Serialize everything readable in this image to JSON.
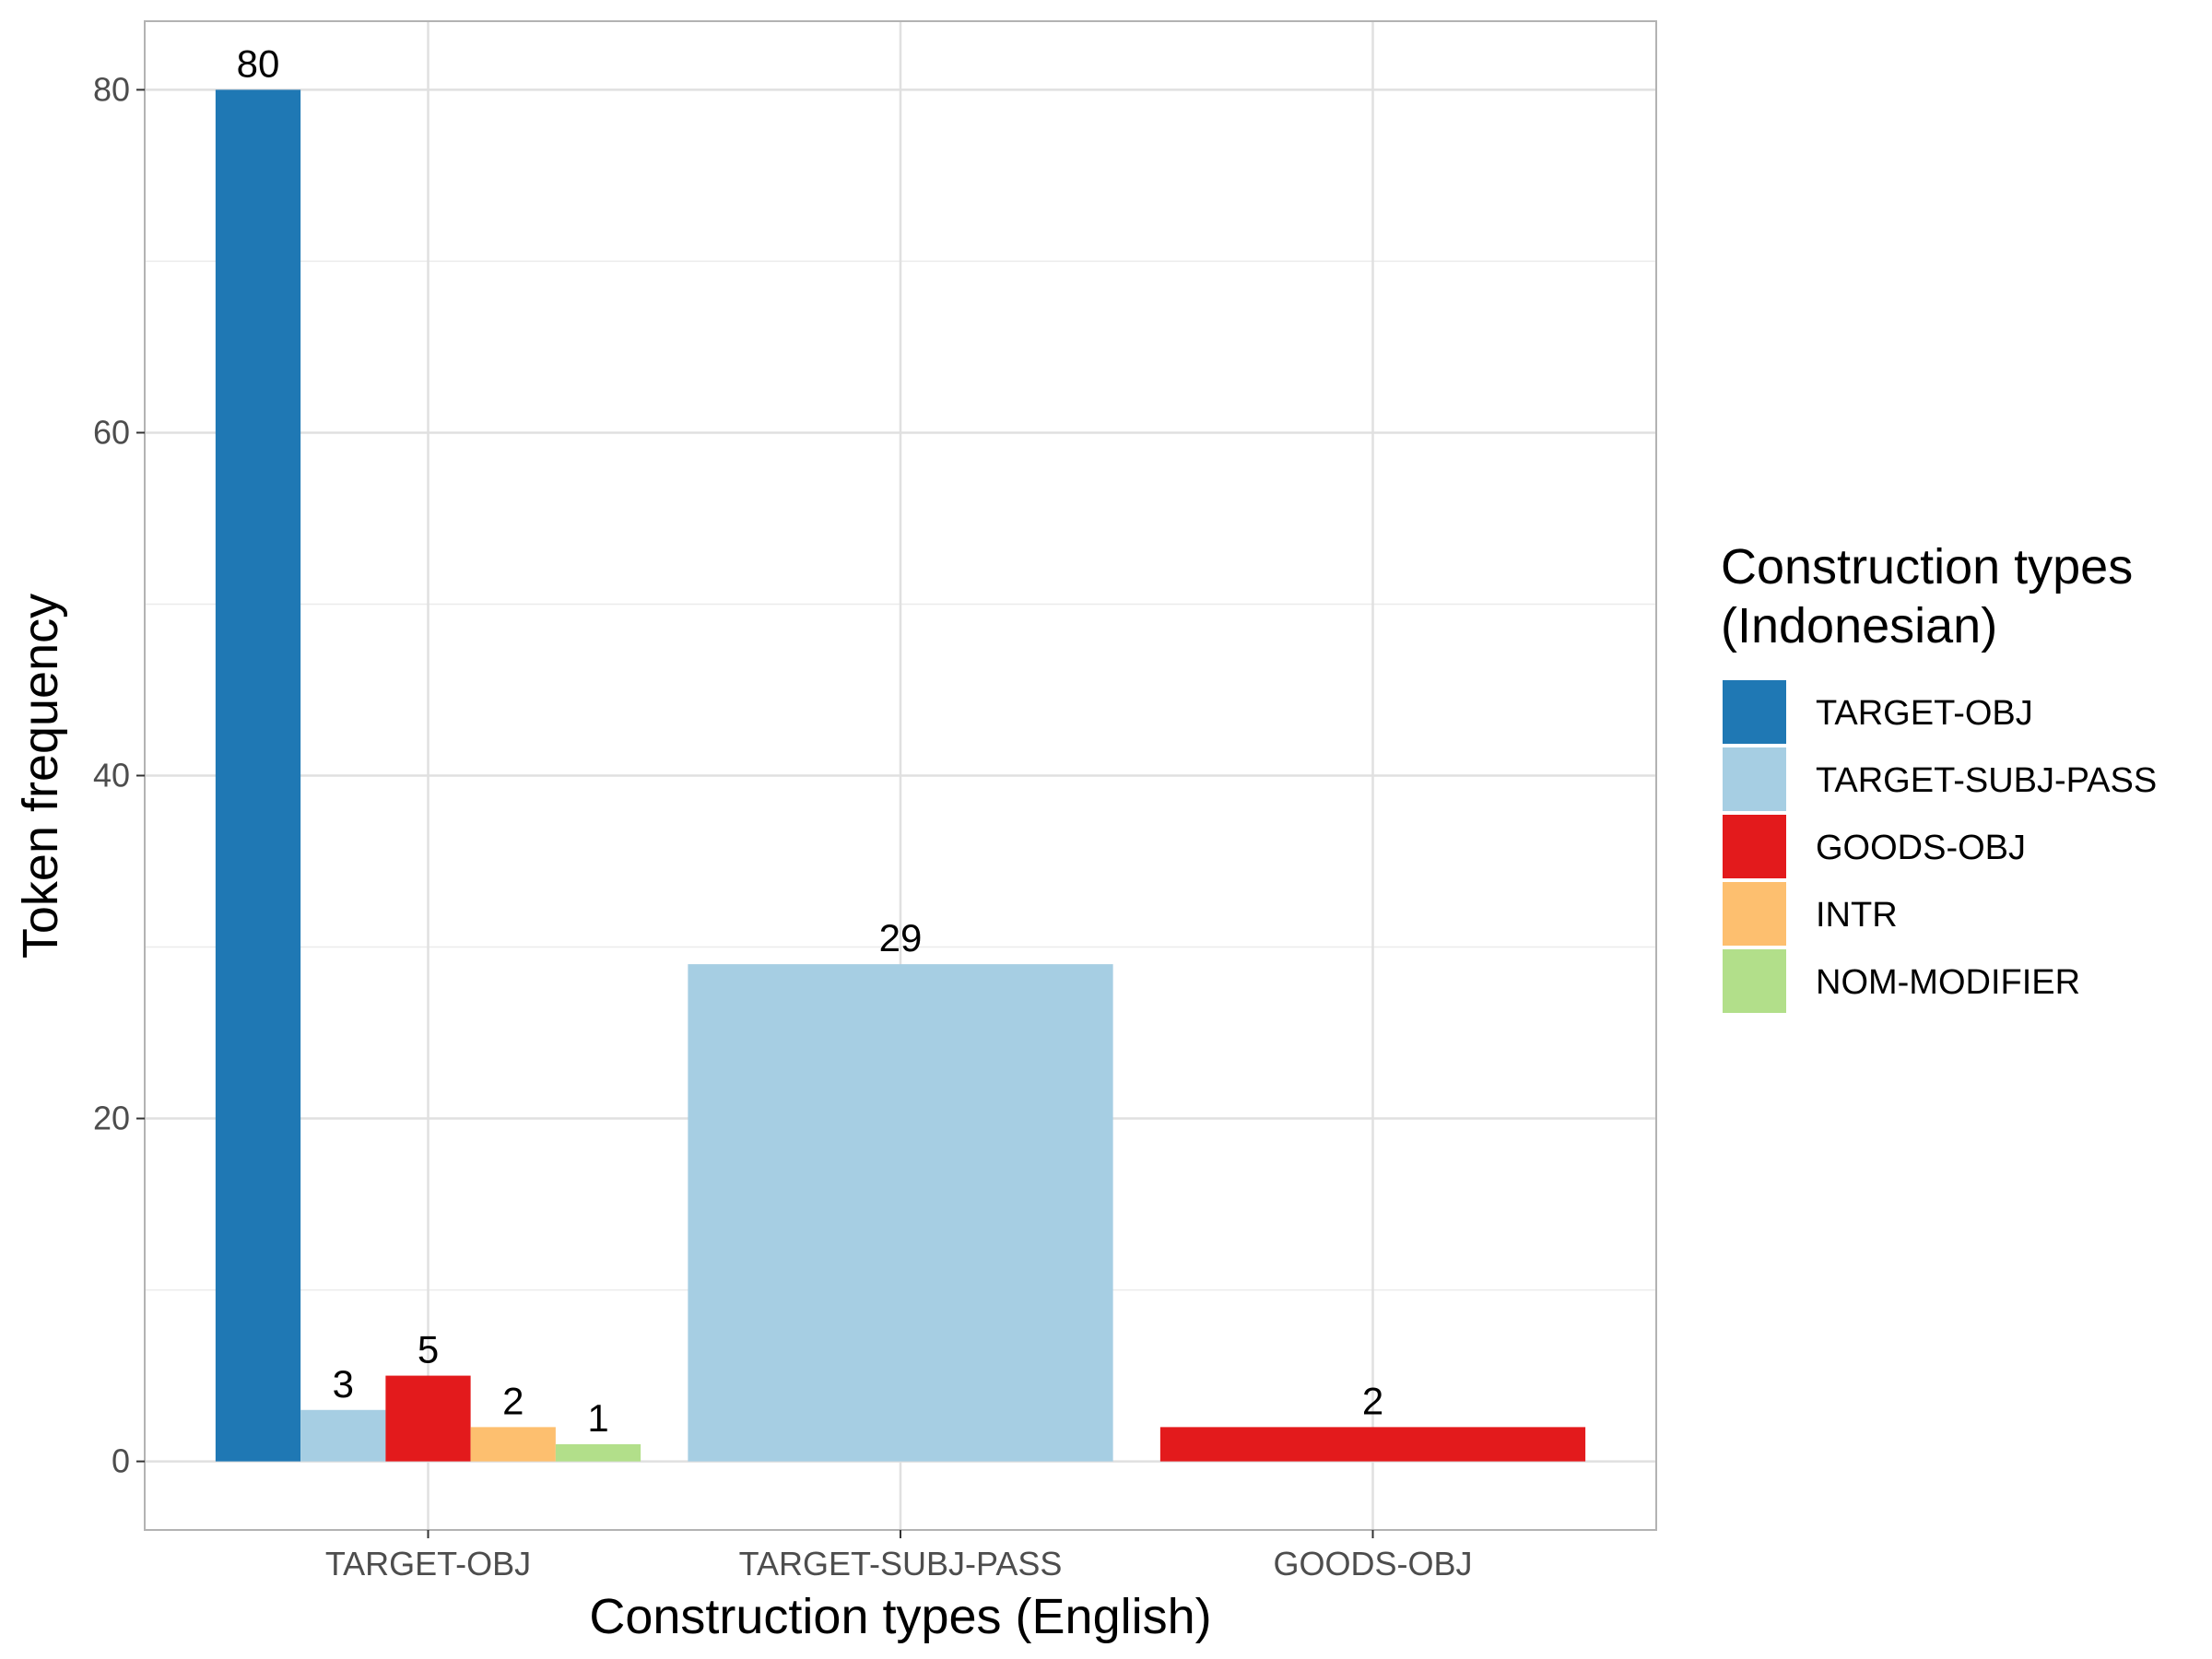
{
  "chart_data": {
    "type": "bar",
    "xlabel": "Construction types (English)",
    "ylabel": "Token frequency",
    "ylim": [
      -4,
      84
    ],
    "yticks": [
      0,
      20,
      40,
      60,
      80
    ],
    "grid": true,
    "legend_position": "right",
    "legend_title": [
      "Construction types",
      "(Indonesian)"
    ],
    "categories": [
      "TARGET-OBJ",
      "TARGET-SUBJ-PASS",
      "GOODS-OBJ"
    ],
    "series": [
      {
        "name": "TARGET-OBJ",
        "color": "#1F78B4"
      },
      {
        "name": "TARGET-SUBJ-PASS",
        "color": "#A6CEE3"
      },
      {
        "name": "GOODS-OBJ",
        "color": "#E31A1C"
      },
      {
        "name": "INTR",
        "color": "#FDBF6F"
      },
      {
        "name": "NOM-MODIFIER",
        "color": "#B2DF8A"
      }
    ],
    "groups": [
      {
        "category": "TARGET-OBJ",
        "bars": [
          {
            "series": "TARGET-OBJ",
            "value": 80
          },
          {
            "series": "TARGET-SUBJ-PASS",
            "value": 3
          },
          {
            "series": "GOODS-OBJ",
            "value": 5
          },
          {
            "series": "INTR",
            "value": 2
          },
          {
            "series": "NOM-MODIFIER",
            "value": 1
          }
        ]
      },
      {
        "category": "TARGET-SUBJ-PASS",
        "bars": [
          {
            "series": "TARGET-SUBJ-PASS",
            "value": 29
          }
        ]
      },
      {
        "category": "GOODS-OBJ",
        "bars": [
          {
            "series": "GOODS-OBJ",
            "value": 2
          }
        ]
      }
    ]
  }
}
